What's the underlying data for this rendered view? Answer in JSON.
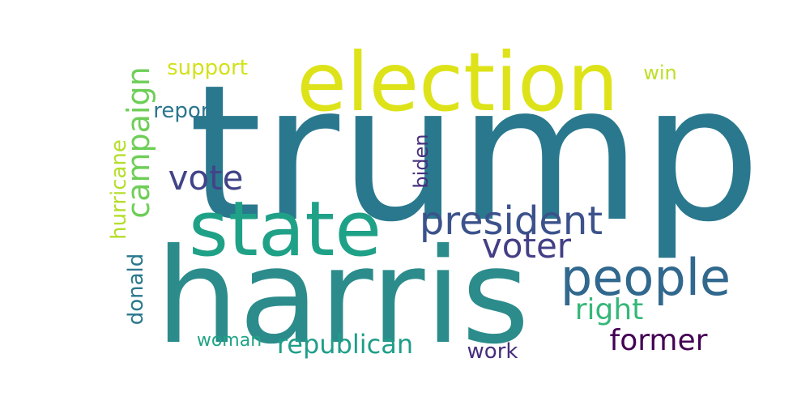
{
  "word_cloud": {
    "words": [
      {
        "text": "trump",
        "color": "#2a788e"
      },
      {
        "text": "harris",
        "color": "#2c8c8b"
      },
      {
        "text": "election",
        "color": "#dde318"
      },
      {
        "text": "state",
        "color": "#1fa187"
      },
      {
        "text": "people",
        "color": "#31688e"
      },
      {
        "text": "president",
        "color": "#3b528b"
      },
      {
        "text": "campaign",
        "color": "#6ece58"
      },
      {
        "text": "voter",
        "color": "#433e85"
      },
      {
        "text": "vote",
        "color": "#414487"
      },
      {
        "text": "right",
        "color": "#35b779"
      },
      {
        "text": "former",
        "color": "#440154"
      },
      {
        "text": "republican",
        "color": "#1f9e89"
      },
      {
        "text": "hurricane",
        "color": "#b5de2b"
      },
      {
        "text": "donald",
        "color": "#2a788e"
      },
      {
        "text": "support",
        "color": "#d2e21b"
      },
      {
        "text": "report",
        "color": "#2a768e"
      },
      {
        "text": "biden",
        "color": "#46327e"
      },
      {
        "text": "win",
        "color": "#bddf26"
      },
      {
        "text": "woman",
        "color": "#20a386"
      },
      {
        "text": "work",
        "color": "#472d7b"
      }
    ]
  }
}
